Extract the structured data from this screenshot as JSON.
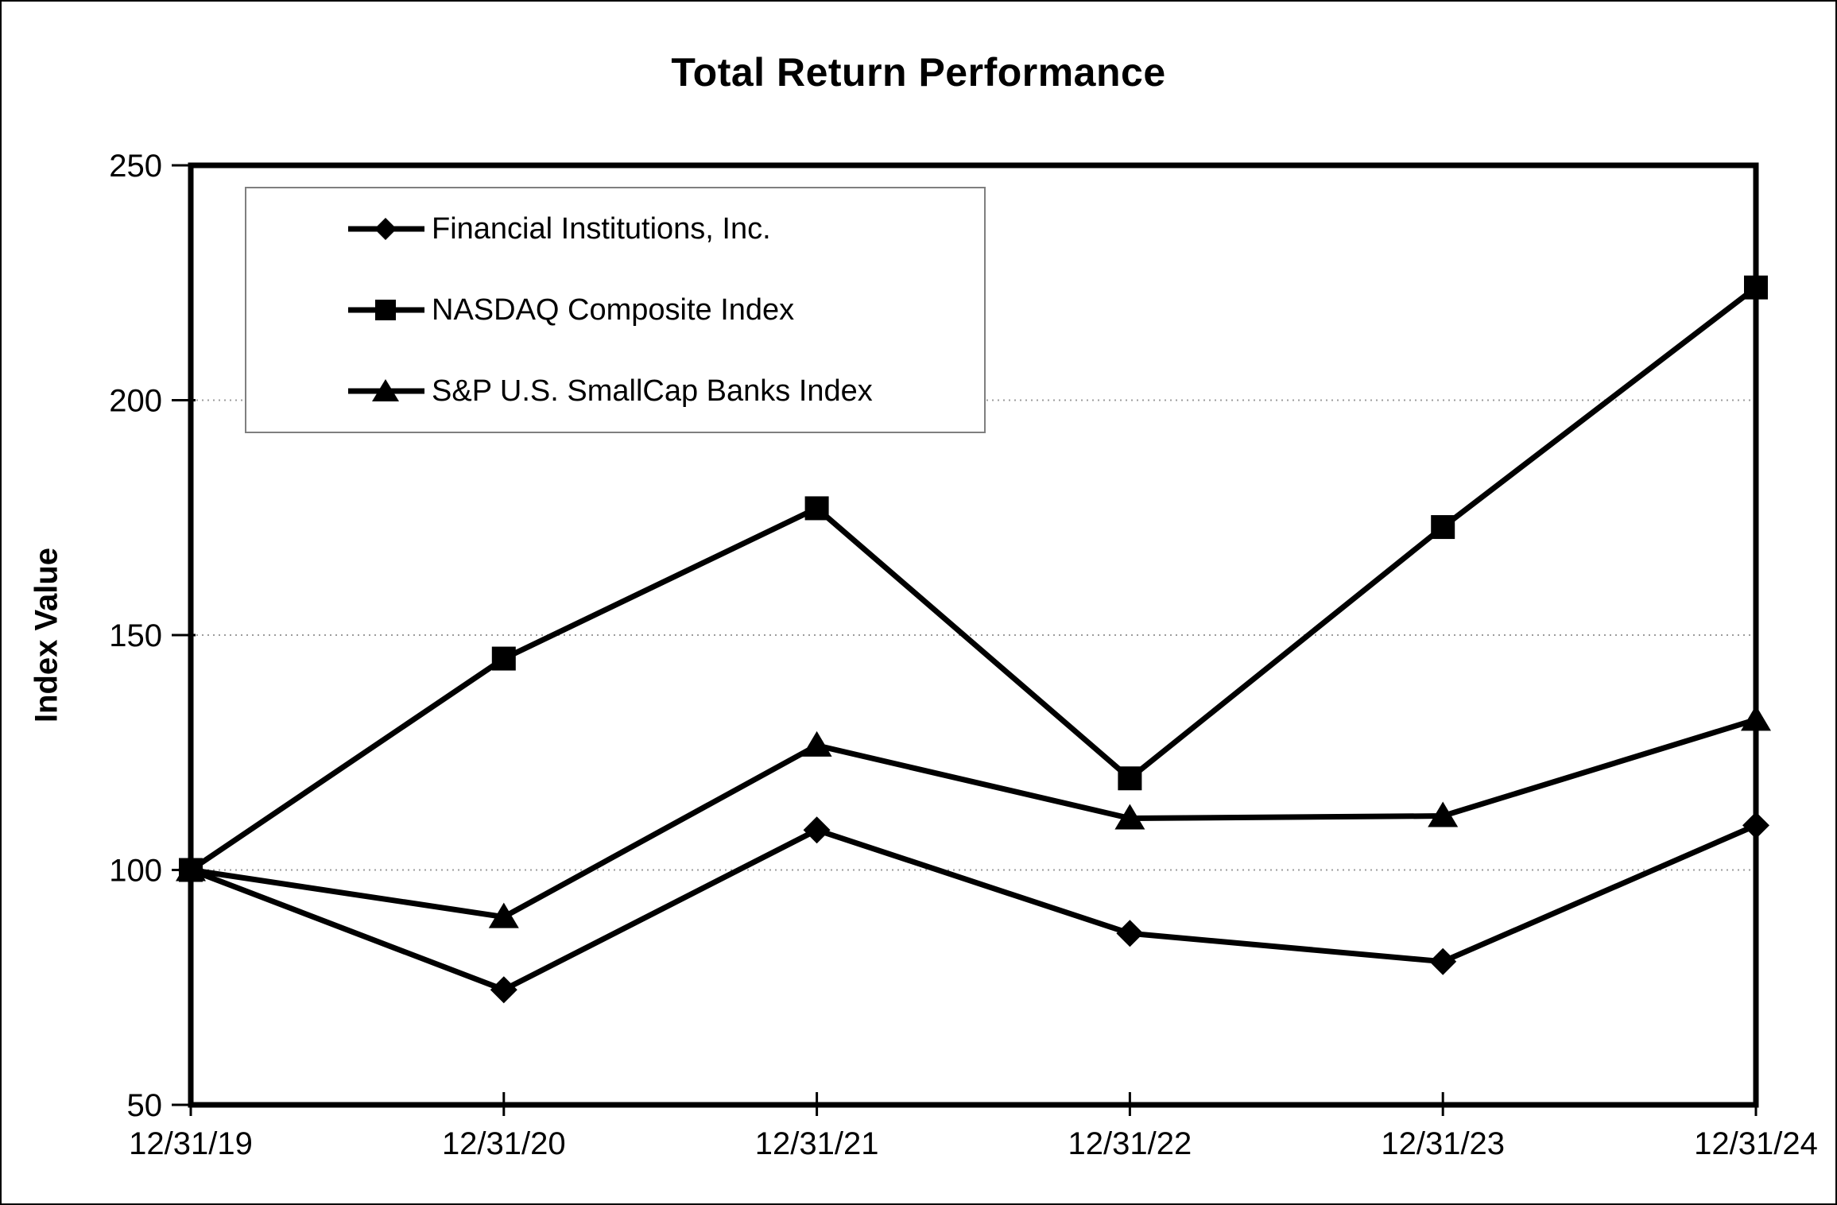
{
  "window": {
    "background": "#ffffff",
    "frame_border_color": "#000000"
  },
  "chart_data": {
    "type": "line",
    "title": "Total Return Performance",
    "xlabel": "",
    "ylabel": "Index Value",
    "categories": [
      "12/31/19",
      "12/31/20",
      "12/31/21",
      "12/31/22",
      "12/31/23",
      "12/31/24"
    ],
    "series": [
      {
        "name": "Financial Institutions, Inc.",
        "marker": "diamond",
        "color": "#000000",
        "values": [
          100,
          74.5,
          108.5,
          86.5,
          80.5,
          109.5
        ]
      },
      {
        "name": "NASDAQ Composite Index",
        "marker": "square",
        "color": "#000000",
        "values": [
          100,
          145,
          177,
          119.5,
          173,
          224
        ]
      },
      {
        "name": "S&P U.S. SmallCap Banks Index",
        "marker": "triangle",
        "color": "#000000",
        "values": [
          100,
          90,
          126.5,
          111,
          111.5,
          132
        ]
      }
    ],
    "ylim": [
      50,
      250
    ],
    "yticks": [
      250,
      200,
      150,
      100,
      50
    ],
    "gridlines_at": [
      200,
      150,
      100
    ],
    "grid": "horizontal dotted",
    "gridline_color": "#9c9c9c",
    "axis_color": "#000000",
    "legend_position": "top-left inside plot",
    "legend_border_color": "#7f7f7f"
  }
}
